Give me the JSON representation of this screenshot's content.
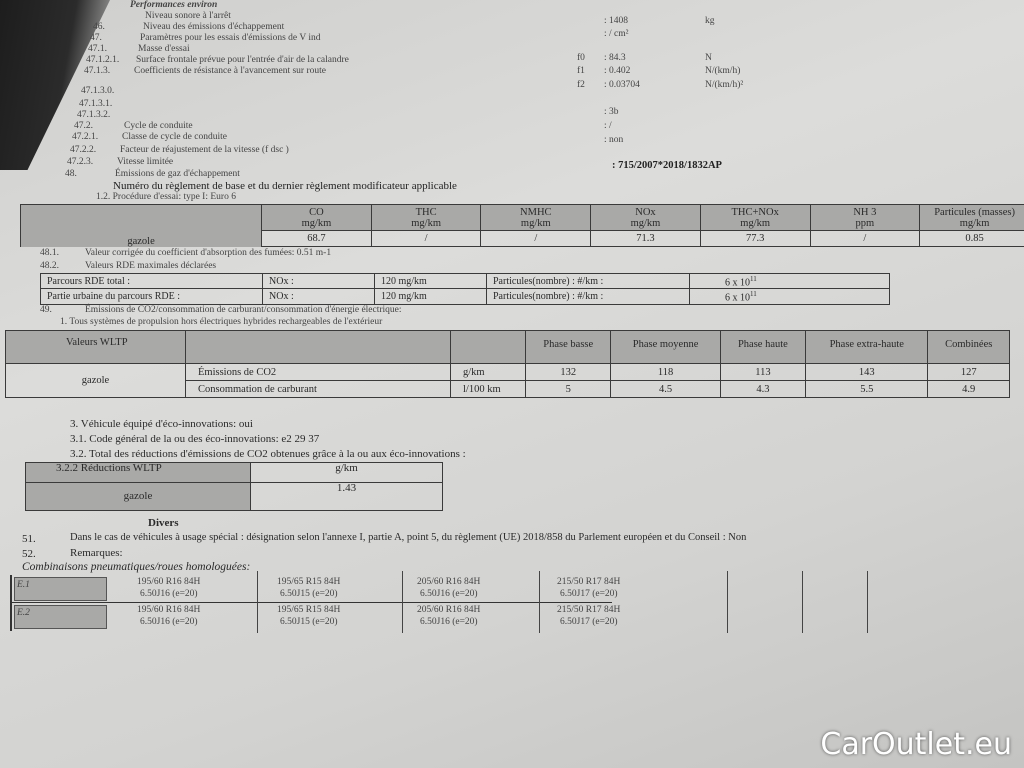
{
  "perf": {
    "heading": "Performances environ",
    "lines": [
      {
        "num": "",
        "label": "Niveau sonore à l'arrêt"
      },
      {
        "num": "46.",
        "label": "Niveau des émissions d'échappement"
      },
      {
        "num": "47.",
        "label": "Paramètres pour les essais d'émissions de V ind"
      },
      {
        "num": "47.1.",
        "label": "Masse d'essai"
      },
      {
        "num": "47.1.2.1.",
        "label": "Surface frontale prévue pour l'entrée d'air de la calandre"
      },
      {
        "num": "47.1.3.",
        "label": "Coefficients de résistance à l'avancement sur route"
      },
      {
        "num": "47.1.3.0.",
        "label": ""
      },
      {
        "num": "47.1.3.1.",
        "label": ""
      },
      {
        "num": "47.1.3.2.",
        "label": ""
      },
      {
        "num": "47.2.",
        "label": "Cycle de conduite"
      },
      {
        "num": "47.2.1.",
        "label": "Classe de cycle de conduite"
      },
      {
        "num": "47.2.2.",
        "label": "Facteur de réajustement de la vitesse (f dsc )"
      },
      {
        "num": "47.2.3.",
        "label": "Vitesse limitée"
      },
      {
        "num": "48.",
        "label": "Émissions de gaz d'échappement"
      },
      {
        "num": "",
        "label": "Numéro du règlement de base et du dernier règlement modificateur applicable"
      }
    ],
    "values": [
      {
        "key": "",
        "value": ": 1408",
        "unit": "kg"
      },
      {
        "key": "",
        "value": ": / cm²",
        "unit": ""
      },
      {
        "key": "f0",
        "value": ": 84.3",
        "unit": "N"
      },
      {
        "key": "f1",
        "value": ": 0.402",
        "unit": "N/(km/h)"
      },
      {
        "key": "f2",
        "value": ": 0.03704",
        "unit": "N/(km/h)²"
      },
      {
        "key": "",
        "value": ": 3b",
        "unit": ""
      },
      {
        "key": "",
        "value": ": /",
        "unit": ""
      },
      {
        "key": "",
        "value": ": non",
        "unit": ""
      },
      {
        "key": "",
        "value": ": 715/2007*2018/1832AP",
        "unit": ""
      }
    ]
  },
  "emissions": {
    "procedure": "1.2. Procédure d'essai: type I: Euro 6",
    "fuel": "gazole",
    "columns": [
      {
        "name": "CO",
        "unit": "mg/km",
        "value": "68.7"
      },
      {
        "name": "THC",
        "unit": "mg/km",
        "value": "/"
      },
      {
        "name": "NMHC",
        "unit": "mg/km",
        "value": "/"
      },
      {
        "name": "NOx",
        "unit": "mg/km",
        "value": "71.3"
      },
      {
        "name": "THC+NOx",
        "unit": "mg/km",
        "value": "77.3"
      },
      {
        "name": "NH 3",
        "unit": "ppm",
        "value": "/"
      },
      {
        "name": "Particules (masses)",
        "unit": "mg/km",
        "value": "0.85"
      }
    ]
  },
  "l481": {
    "num": "48.1.",
    "text": "Valeur corrigée du coefficient d'absorption des fumées: 0.51 m-1"
  },
  "l482": {
    "num": "48.2.",
    "text": "Valeurs RDE maximales déclarées"
  },
  "rde": [
    {
      "label": "Parcours RDE total :",
      "nox": "NOx :",
      "nox_val": "120 mg/km",
      "pn": "Particules(nombre) : #/km :",
      "pn_val": "6 x 10",
      "exp": "11"
    },
    {
      "label": "Partie urbaine du parcours RDE      :",
      "nox": "NOx :",
      "nox_val": "120 mg/km",
      "pn": "Particules(nombre) : #/km :",
      "pn_val": "6 x 10",
      "exp": "11"
    }
  ],
  "l49": {
    "num": "49.",
    "text": "Émissions de CO2/consommation de carburant/consommation d'énergie électrique:",
    "sub": "1. Tous systèmes de propulsion hors électriques hybrides rechargeables de l'extérieur"
  },
  "wltp": {
    "header": "Valeurs WLTP",
    "fuel": "gazole",
    "phases": [
      "Phase basse",
      "Phase moyenne",
      "Phase haute",
      "Phase extra-haute",
      "Combinées"
    ],
    "rows": [
      {
        "label": "Émissions de CO2",
        "unit": "g/km",
        "values": [
          "132",
          "118",
          "113",
          "143",
          "127"
        ]
      },
      {
        "label": "Consommation de carburant",
        "unit": "l/100 km",
        "values": [
          "5",
          "4.5",
          "4.3",
          "5.5",
          "4.9"
        ]
      }
    ]
  },
  "eco": {
    "l3": "3. Véhicule équipé d'éco-innovations: oui",
    "l31": "3.1. Code général de la ou des éco-innovations: e2 29 37",
    "l32": "3.2. Total des réductions d'émissions de CO2 obtenues grâce à la ou aux éco-innovations :",
    "header": "3.2.2 Réductions WLTP",
    "unit": "g/km",
    "fuel": "gazole",
    "value": "1.43"
  },
  "divers": {
    "title": "Divers",
    "l51num": "51.",
    "l51": "Dans le cas de véhicules à usage spécial : désignation selon l'annexe I, partie A, point 5, du règlement (UE) 2018/858 du Parlement européen et du Conseil : Non",
    "l52num": "52.",
    "l52": "Remarques:",
    "combo": "Combinaisons pneumatiques/roues homologuées:"
  },
  "tires": [
    {
      "label": "E.1",
      "items": [
        [
          "195/60 R16 84H",
          "6.50J16 (e=20)"
        ],
        [
          "195/65 R15 84H",
          "6.50J15 (e=20)"
        ],
        [
          "205/60 R16 84H",
          "6.50J16 (e=20)"
        ],
        [
          "215/50 R17 84H",
          "6.50J17 (e=20)"
        ]
      ]
    },
    {
      "label": "E.2",
      "items": [
        [
          "195/60 R16 84H",
          "6.50J16 (e=20)"
        ],
        [
          "195/65 R15 84H",
          "6.50J15 (e=20)"
        ],
        [
          "205/60 R16 84H",
          "6.50J16 (e=20)"
        ],
        [
          "215/50 R17 84H",
          "6.50J17 (e=20)"
        ]
      ]
    }
  ],
  "watermark": "CarOutlet.eu"
}
